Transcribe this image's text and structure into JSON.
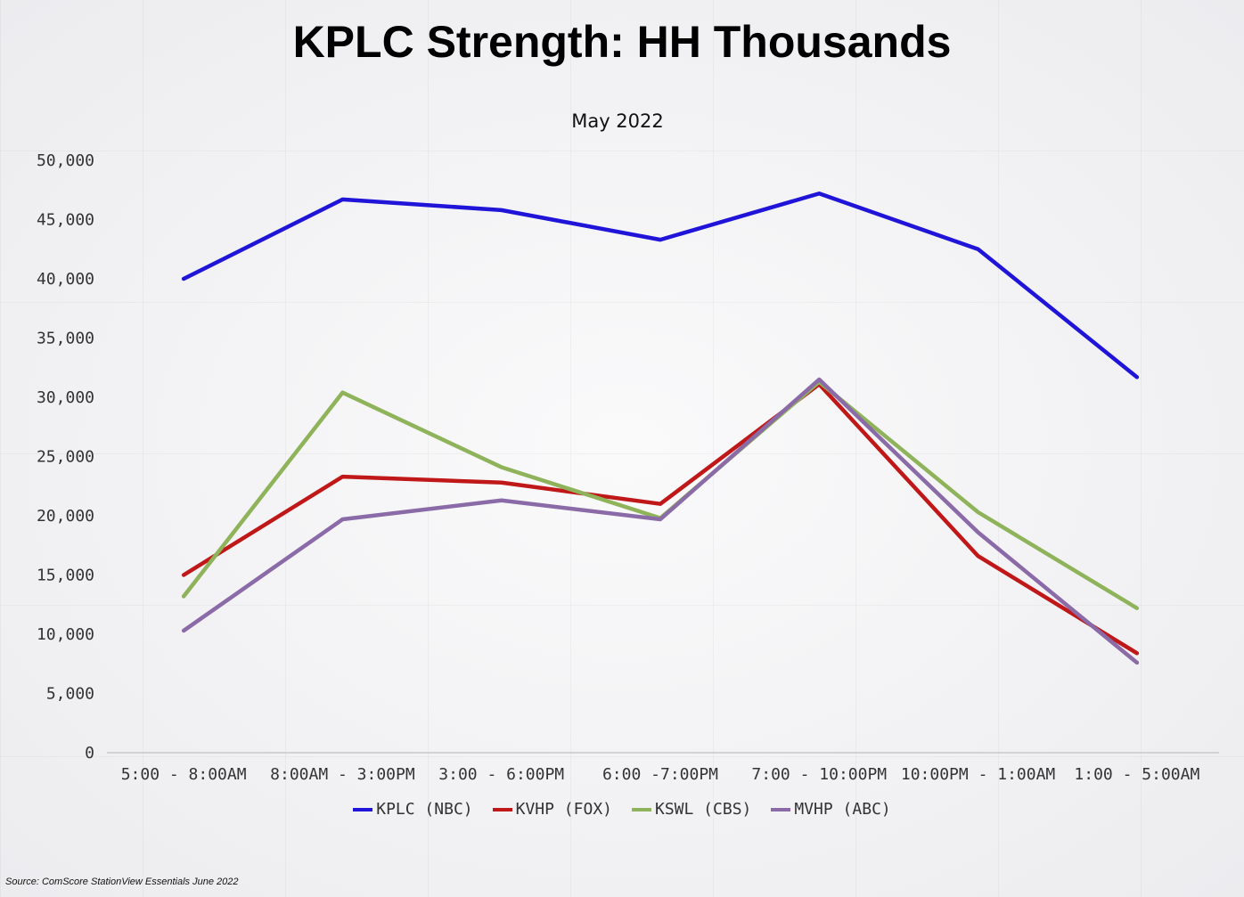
{
  "chart_data": {
    "type": "line",
    "title": "KPLC Strength: HH Thousands",
    "subtitle": "May 2022",
    "categories": [
      "5:00 - 8:00AM",
      "8:00AM - 3:00PM",
      "3:00 - 6:00PM",
      "6:00 -7:00PM",
      "7:00 - 10:00PM",
      "10:00PM - 1:00AM",
      "1:00 - 5:00AM"
    ],
    "ylim": [
      0,
      50000
    ],
    "yticks": [
      0,
      5000,
      10000,
      15000,
      20000,
      25000,
      30000,
      35000,
      40000,
      45000,
      50000
    ],
    "ytick_labels": [
      "0",
      "5,000",
      "10,000",
      "15,000",
      "20,000",
      "25,000",
      "30,000",
      "35,000",
      "40,000",
      "45,000",
      "50,000"
    ],
    "grid": false,
    "legend_position": "bottom",
    "series": [
      {
        "name": "KPLC (NBC)",
        "color": "#1f14d8",
        "values": [
          40000,
          46700,
          45800,
          43300,
          47200,
          42500,
          31700
        ]
      },
      {
        "name": "KVHP (FOX)",
        "color": "#c01818",
        "values": [
          15000,
          23300,
          22800,
          21000,
          31100,
          16600,
          8400
        ]
      },
      {
        "name": "KSWL (CBS)",
        "color": "#8fb35a",
        "values": [
          13200,
          30400,
          24100,
          19800,
          31300,
          20300,
          12200
        ]
      },
      {
        "name": "MVHP (ABC)",
        "color": "#8a6ba8",
        "values": [
          10300,
          19700,
          21300,
          19700,
          31500,
          18600,
          7600
        ]
      }
    ]
  },
  "source": "Source: ComScore StationView Essentials June 2022"
}
